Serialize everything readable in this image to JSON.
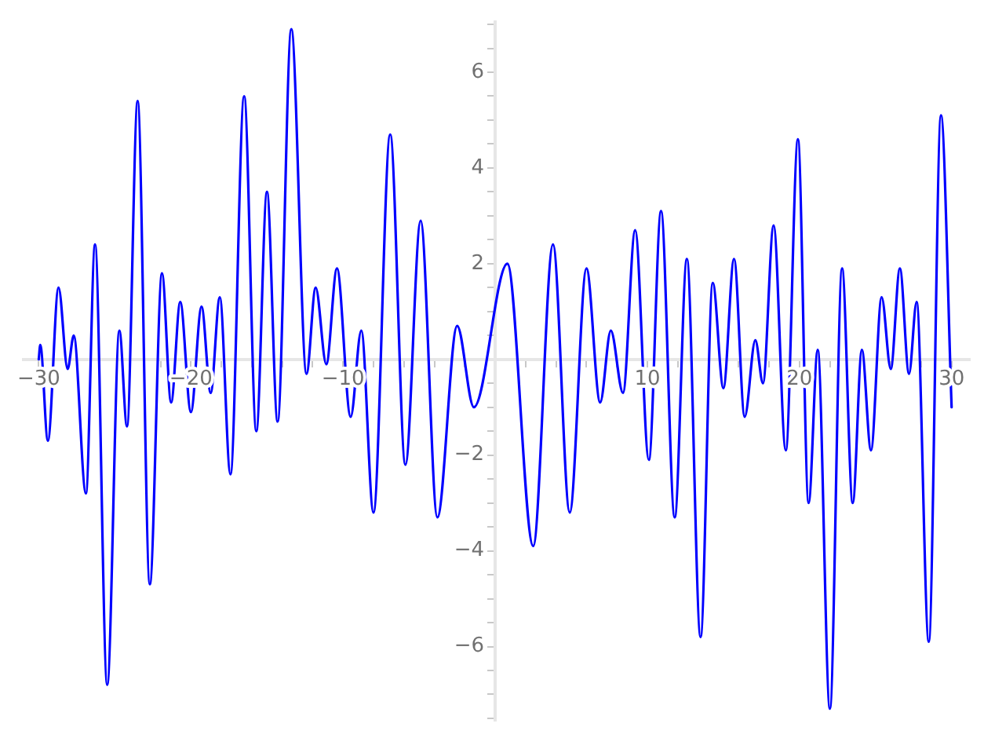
{
  "chart_data": {
    "type": "line",
    "marker": "none",
    "line_style": "solid",
    "grid": false,
    "legend": false,
    "xlim": [
      -31,
      31.2
    ],
    "ylim": [
      -7.55,
      7.05
    ],
    "xticks": [
      {
        "value": -30,
        "label": "−30"
      },
      {
        "value": -28,
        "label": null
      },
      {
        "value": -26,
        "label": null
      },
      {
        "value": -24,
        "label": null
      },
      {
        "value": -22,
        "label": null
      },
      {
        "value": -20,
        "label": "−20"
      },
      {
        "value": -18,
        "label": null
      },
      {
        "value": -16,
        "label": null
      },
      {
        "value": -14,
        "label": null
      },
      {
        "value": -12,
        "label": null
      },
      {
        "value": -10,
        "label": "−10"
      },
      {
        "value": -8,
        "label": null
      },
      {
        "value": -6,
        "label": null
      },
      {
        "value": -4,
        "label": null
      },
      {
        "value": -2,
        "label": null
      },
      {
        "value": 2,
        "label": null
      },
      {
        "value": 4,
        "label": null
      },
      {
        "value": 6,
        "label": null
      },
      {
        "value": 8,
        "label": null
      },
      10,
      {
        "value": 12,
        "label": null
      },
      {
        "value": 14,
        "label": null
      },
      {
        "value": 16,
        "label": null
      },
      {
        "value": 18,
        "label": null
      },
      20,
      {
        "value": 22,
        "label": null
      },
      {
        "value": 24,
        "label": null
      },
      {
        "value": 26,
        "label": null
      },
      {
        "value": 28,
        "label": null
      },
      30
    ],
    "yticks": [
      {
        "value": -7.5,
        "label": null
      },
      {
        "value": -7,
        "label": null
      },
      {
        "value": -6.5,
        "label": null
      },
      {
        "value": -6,
        "label": "−6"
      },
      {
        "value": -5.5,
        "label": null
      },
      {
        "value": -5,
        "label": null
      },
      {
        "value": -4.5,
        "label": null
      },
      {
        "value": -4,
        "label": "−4"
      },
      {
        "value": -3.5,
        "label": null
      },
      {
        "value": -3,
        "label": null
      },
      {
        "value": -2.5,
        "label": null
      },
      {
        "value": -2,
        "label": "−2"
      },
      {
        "value": -1.5,
        "label": null
      },
      {
        "value": -1,
        "label": null
      },
      {
        "value": -0.5,
        "label": null
      },
      {
        "value": 0.5,
        "label": null
      },
      {
        "value": 1,
        "label": null
      },
      {
        "value": 1.5,
        "label": null
      },
      2,
      {
        "value": 2.5,
        "label": null
      },
      {
        "value": 3,
        "label": null
      },
      {
        "value": 3.5,
        "label": null
      },
      4,
      {
        "value": 4.5,
        "label": null
      },
      {
        "value": 5,
        "label": null
      },
      {
        "value": 5.5,
        "label": null
      },
      6,
      {
        "value": 6.5,
        "label": null
      },
      {
        "value": 7,
        "label": null
      }
    ],
    "series": [
      {
        "color": "#0000ff",
        "x": [
          -30,
          -29.9,
          -29.4,
          -28.7,
          -28.1,
          -27.7,
          -26.9,
          -26.3,
          -25.5,
          -24.7,
          -24.2,
          -23.5,
          -22.7,
          -21.9,
          -21.3,
          -20.7,
          -20,
          -19.3,
          -18.7,
          -18.1,
          -17.4,
          -16.5,
          -15.7,
          -15,
          -14.3,
          -13.4,
          -12.4,
          -11.8,
          -11.1,
          -10.4,
          -9.5,
          -8.8,
          -8,
          -6.9,
          -5.9,
          -4.9,
          -3.8,
          -2.5,
          -1.4,
          0.8,
          2.5,
          3.8,
          4.9,
          6,
          6.9,
          7.6,
          8.4,
          9.2,
          10.1,
          10.9,
          11.8,
          12.6,
          13.5,
          14.3,
          15,
          15.7,
          16.4,
          17.1,
          17.6,
          18.3,
          19.1,
          19.9,
          20.6,
          21.2,
          22,
          22.8,
          23.5,
          24.1,
          24.7,
          25.4,
          26,
          26.6,
          27.2,
          27.7,
          28.5,
          29.3,
          30
        ],
        "values": [
          0,
          0.3,
          -1.7,
          1.5,
          -0.2,
          0.5,
          -2.8,
          2.4,
          -6.8,
          0.6,
          -1.4,
          5.4,
          -4.7,
          1.8,
          -0.9,
          1.2,
          -1.1,
          1.1,
          -0.7,
          1.3,
          -2.4,
          5.5,
          -1.5,
          3.5,
          -1.3,
          6.9,
          -0.3,
          1.5,
          -0.1,
          1.9,
          -1.2,
          0.6,
          -3.2,
          4.7,
          -2.2,
          2.9,
          -3.3,
          0.7,
          -1,
          2,
          -3.9,
          2.4,
          -3.2,
          1.9,
          -0.9,
          0.6,
          -0.7,
          2.7,
          -2.1,
          3.1,
          -3.3,
          2.1,
          -5.8,
          1.6,
          -0.6,
          2.1,
          -1.2,
          0.4,
          -0.5,
          2.8,
          -1.9,
          4.6,
          -3,
          0.2,
          -7.3,
          1.9,
          -3,
          0.2,
          -1.9,
          1.3,
          -0.2,
          1.9,
          -0.3,
          1.2,
          -5.9,
          5.1,
          -1
        ]
      }
    ]
  }
}
